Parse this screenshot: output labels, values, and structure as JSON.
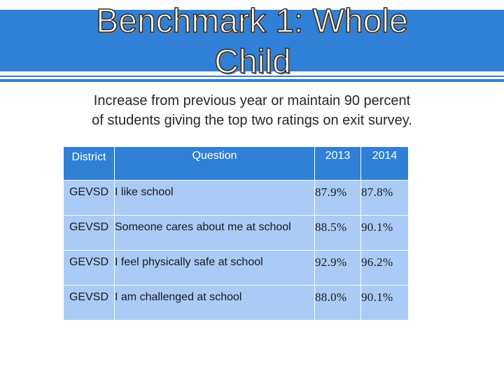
{
  "slide": {
    "title_line_1": "Benchmark 1: Whole",
    "title_line_2": "Child",
    "subtitle_line_1": "Increase from previous year or maintain 90 percent",
    "subtitle_line_2": "of students giving the top two ratings on exit survey."
  },
  "table": {
    "headers": {
      "district": "District",
      "question": "Question",
      "year_2013": "2013",
      "year_2014": "2014"
    },
    "rows": [
      {
        "district": "GEVSD",
        "question": "I like school",
        "v2013": "87.9%",
        "v2014": "87.8%",
        "v2014_status": "decrease"
      },
      {
        "district": "GEVSD",
        "question": "Someone cares about me at school",
        "v2013": "88.5%",
        "v2014": "90.1%",
        "v2014_status": "met"
      },
      {
        "district": "GEVSD",
        "question": "I feel physically safe at school",
        "v2013": "92.9%",
        "v2014": "96.2%",
        "v2014_status": "met"
      },
      {
        "district": "GEVSD",
        "question": "I am challenged at school",
        "v2013": "88.0%",
        "v2014": "90.1%",
        "v2014_status": "met"
      }
    ]
  },
  "colors": {
    "header_blue": "#2f80d6",
    "cell_light_blue": "#a9cbf5",
    "decrease_red": "#ff0000",
    "met_green": "#1aa53a"
  }
}
